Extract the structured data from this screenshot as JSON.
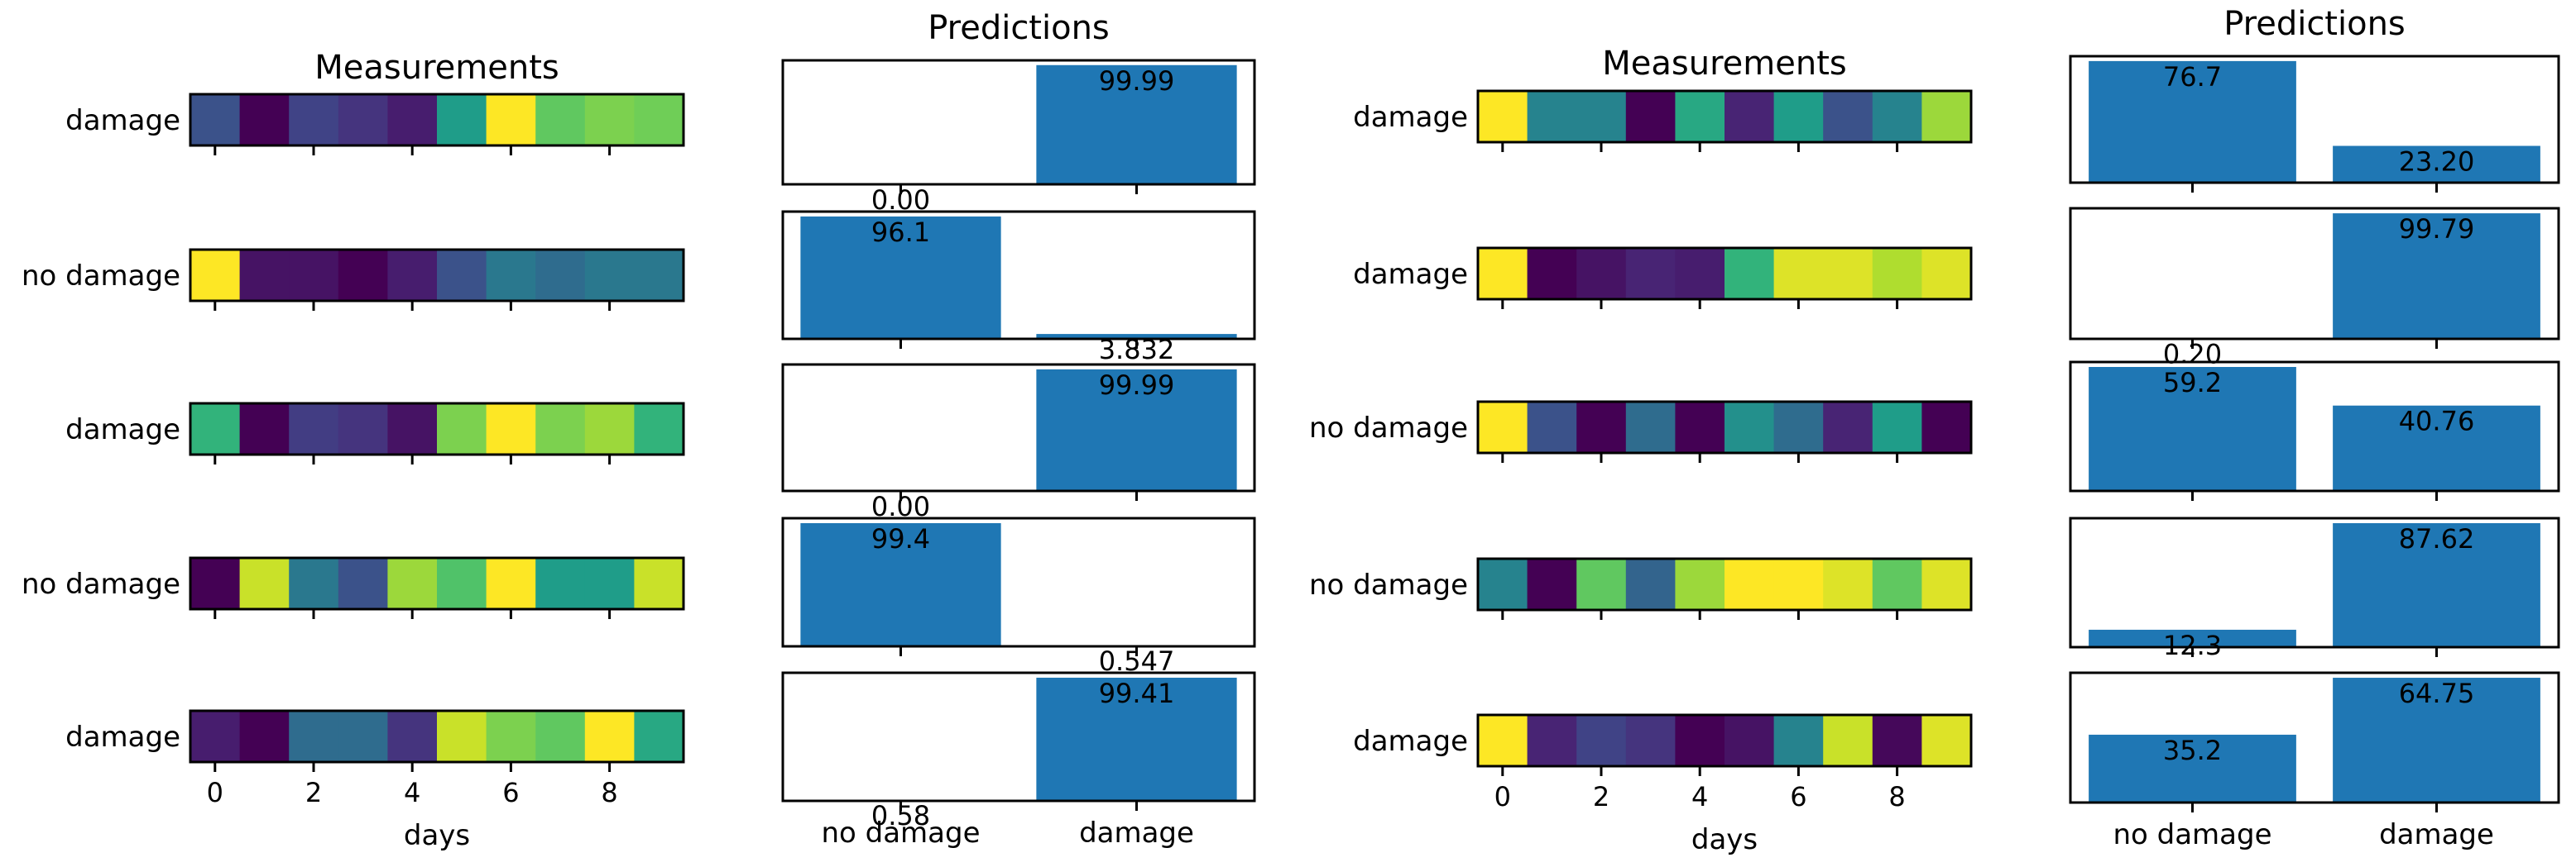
{
  "chart_data": {
    "type": "composite",
    "colormap": "viridis",
    "colors": {
      "bar": "#1f77b4"
    },
    "panels": [
      {
        "heatmap_title": "Measurements",
        "predictions_title": "Predictions",
        "heatmap_xlabel": "days",
        "heatmap_xticks": [
          "0",
          "2",
          "4",
          "6",
          "8"
        ],
        "pred_categories": [
          "no damage",
          "damage"
        ],
        "rows": [
          {
            "label": "damage",
            "measurements": [
              0.25,
              0.0,
              0.2,
              0.15,
              0.08,
              0.55,
              1.0,
              0.75,
              0.8,
              0.78
            ],
            "predictions": [
              0.0,
              99.99
            ],
            "value_labels": [
              "0.00",
              "99.99"
            ]
          },
          {
            "label": "no damage",
            "measurements": [
              1.0,
              0.05,
              0.05,
              0.0,
              0.08,
              0.25,
              0.4,
              0.35,
              0.4,
              0.4
            ],
            "predictions": [
              96.1,
              3.832
            ],
            "value_labels": [
              "96.1",
              "3.832"
            ]
          },
          {
            "label": "damage",
            "measurements": [
              0.65,
              0.0,
              0.18,
              0.15,
              0.05,
              0.8,
              1.0,
              0.8,
              0.85,
              0.65
            ],
            "predictions": [
              0.0,
              99.99
            ],
            "value_labels": [
              "0.00",
              "99.99"
            ]
          },
          {
            "label": "no damage",
            "measurements": [
              0.0,
              0.92,
              0.4,
              0.25,
              0.85,
              0.72,
              1.0,
              0.55,
              0.55,
              0.92
            ],
            "predictions": [
              99.4,
              0.547
            ],
            "value_labels": [
              "99.4",
              "0.547"
            ]
          },
          {
            "label": "damage",
            "measurements": [
              0.08,
              0.0,
              0.35,
              0.35,
              0.15,
              0.92,
              0.8,
              0.75,
              1.0,
              0.6
            ],
            "predictions": [
              0.58,
              99.41
            ],
            "value_labels": [
              "0.58",
              "99.41"
            ]
          }
        ]
      },
      {
        "heatmap_title": "Measurements",
        "predictions_title": "Predictions",
        "heatmap_xlabel": "days",
        "heatmap_xticks": [
          "0",
          "2",
          "4",
          "6",
          "8"
        ],
        "pred_categories": [
          "no damage",
          "damage"
        ],
        "rows": [
          {
            "label": "damage",
            "measurements": [
              1.0,
              0.45,
              0.45,
              0.0,
              0.6,
              0.1,
              0.55,
              0.25,
              0.45,
              0.85
            ],
            "predictions": [
              76.7,
              23.2
            ],
            "value_labels": [
              "76.7",
              "23.20"
            ]
          },
          {
            "label": "damage",
            "measurements": [
              1.0,
              0.0,
              0.05,
              0.1,
              0.08,
              0.65,
              0.95,
              0.95,
              0.88,
              0.95
            ],
            "predictions": [
              0.2,
              99.79
            ],
            "value_labels": [
              "0.20",
              "99.79"
            ]
          },
          {
            "label": "no damage",
            "measurements": [
              1.0,
              0.25,
              0.0,
              0.35,
              0.0,
              0.5,
              0.35,
              0.1,
              0.55,
              0.0
            ],
            "predictions": [
              59.2,
              40.76
            ],
            "value_labels": [
              "59.2",
              "40.76"
            ]
          },
          {
            "label": "no damage",
            "measurements": [
              0.45,
              0.0,
              0.75,
              0.32,
              0.85,
              1.0,
              1.0,
              0.95,
              0.75,
              0.95
            ],
            "predictions": [
              12.3,
              87.62
            ],
            "value_labels": [
              "12.3",
              "87.62"
            ]
          },
          {
            "label": "damage",
            "measurements": [
              1.0,
              0.1,
              0.2,
              0.15,
              0.0,
              0.05,
              0.45,
              0.92,
              0.02,
              0.95
            ],
            "predictions": [
              35.2,
              64.75
            ],
            "value_labels": [
              "35.2",
              "64.75"
            ]
          }
        ]
      }
    ]
  }
}
